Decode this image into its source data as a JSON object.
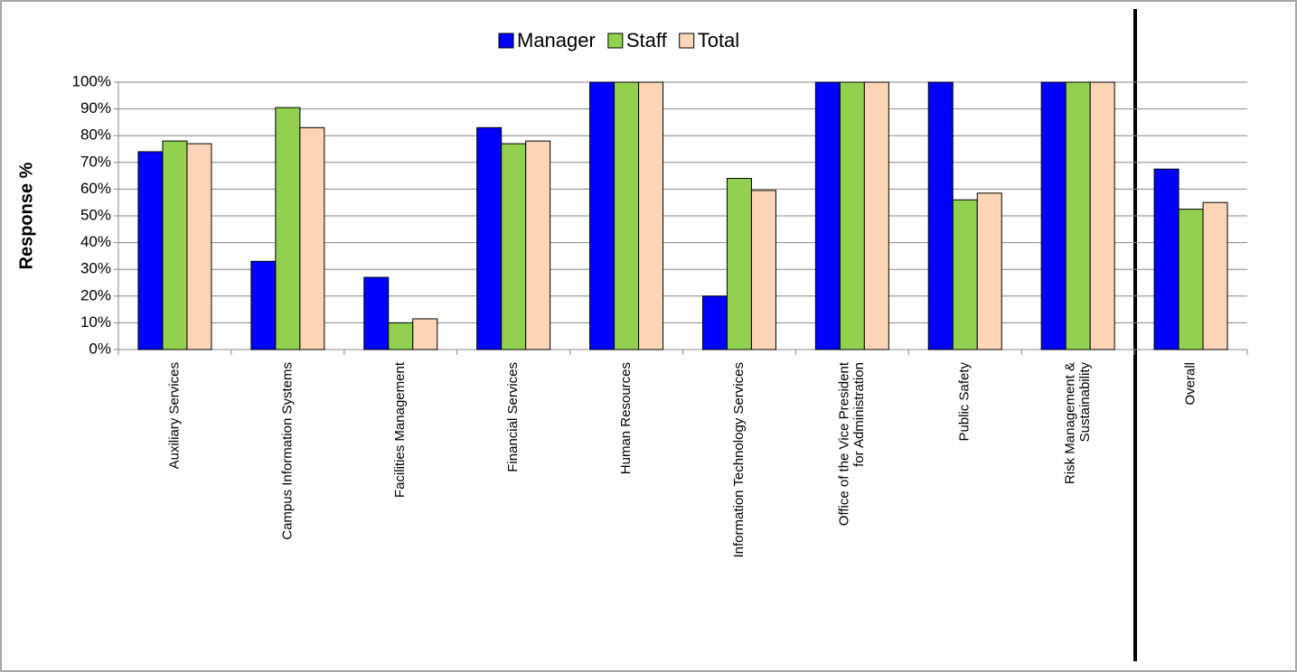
{
  "chart_data": {
    "type": "bar",
    "categories": [
      "Auxiliary Services",
      "Campus Information Systems",
      "Facilities Management",
      "Financial Services",
      "Human Resources",
      "Information Technology Services",
      "Office of the Vice President for Administration",
      "Public Safety",
      "Risk Management & Sustainability",
      "Overall"
    ],
    "series": [
      {
        "name": "Manager",
        "color": "#0000ff",
        "values": [
          74,
          33,
          27,
          83,
          100,
          20,
          100,
          100,
          100,
          67.5
        ]
      },
      {
        "name": "Staff",
        "color": "#92d050",
        "values": [
          78,
          90.5,
          10,
          77,
          100,
          64,
          100,
          56,
          100,
          52.5
        ]
      },
      {
        "name": "Total",
        "color": "#fbd5b5",
        "values": [
          77,
          83,
          11.5,
          78,
          100,
          59.5,
          100,
          58.5,
          100,
          55
        ]
      }
    ],
    "y_label": "Response %",
    "ylim": [
      0,
      100
    ],
    "yticks": [
      {
        "value": 0,
        "label": "0%"
      },
      {
        "value": 10,
        "label": "10%"
      },
      {
        "value": 20,
        "label": "20%"
      },
      {
        "value": 30,
        "label": "30%"
      },
      {
        "value": 40,
        "label": "40%"
      },
      {
        "value": 50,
        "label": "50%"
      },
      {
        "value": 60,
        "label": "60%"
      },
      {
        "value": 70,
        "label": "70%"
      },
      {
        "value": 80,
        "label": "80%"
      },
      {
        "value": 90,
        "label": "90%"
      },
      {
        "value": 100,
        "label": "100%"
      }
    ],
    "grid": true,
    "legend": "top"
  }
}
